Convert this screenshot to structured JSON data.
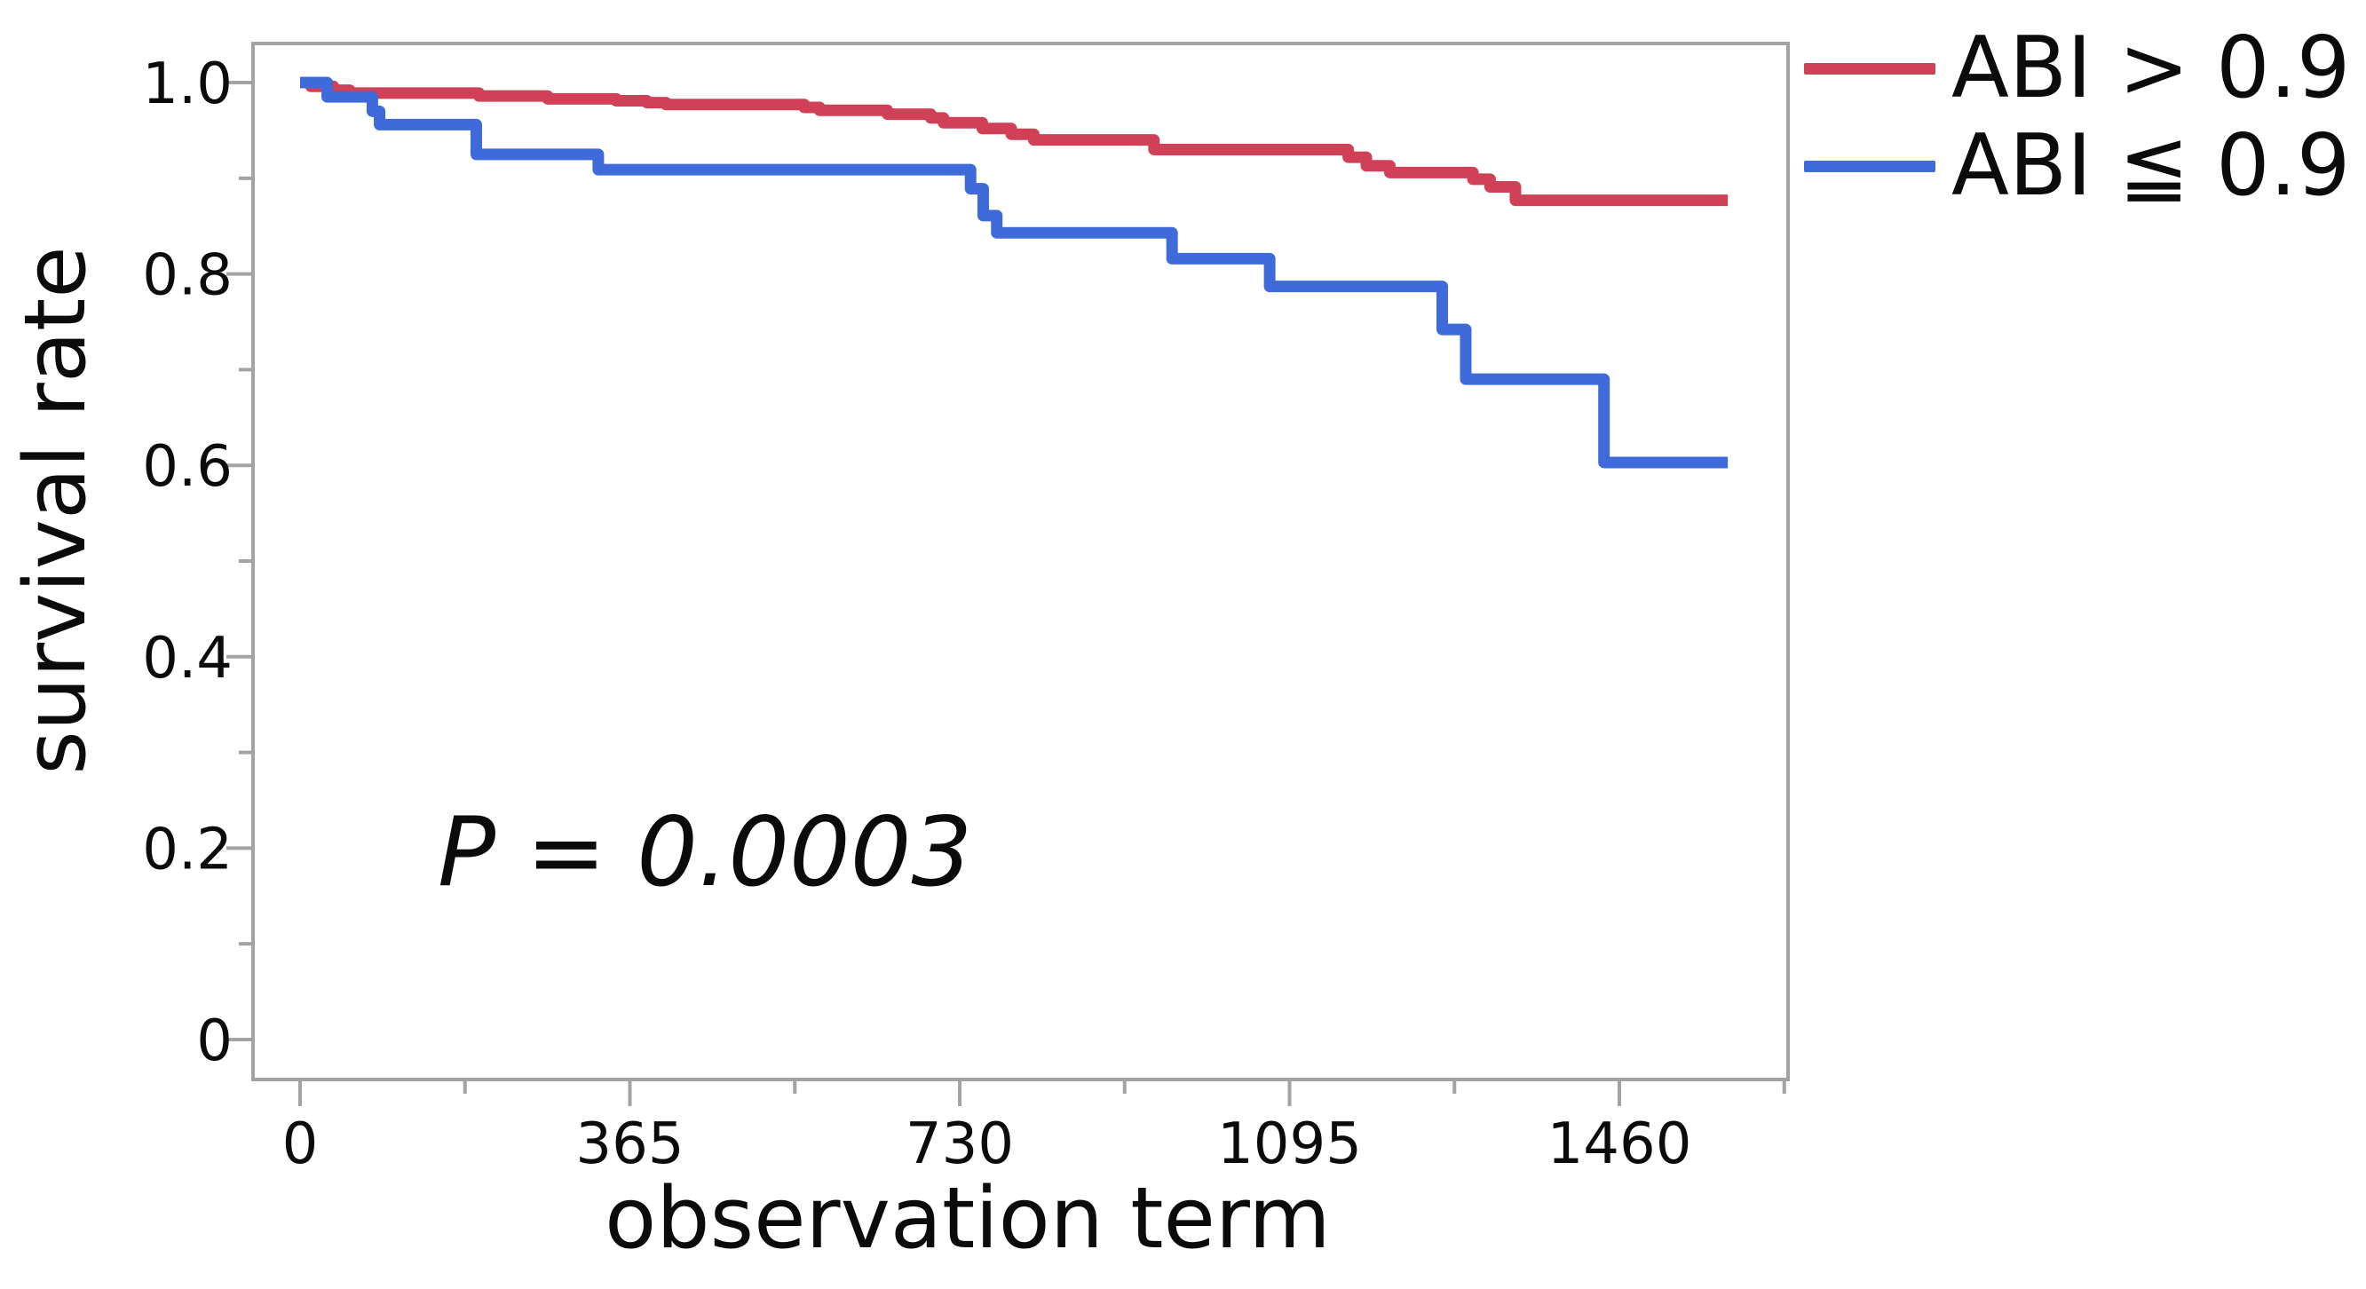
{
  "labels": {
    "y_axis": "survival rate",
    "x_axis": "observation term",
    "p_value": "P = 0.0003"
  },
  "legend": {
    "items": [
      {
        "label": "ABI > 0.9",
        "color": "#d04056"
      },
      {
        "label": "ABI ≦ 0.9",
        "color": "#3f6ad9"
      }
    ]
  },
  "colors": {
    "red_series": "#d04056",
    "blue_series": "#3f6ad9",
    "axis": "#a3a3a3",
    "text": "#0b0b0b",
    "background": "#ffffff"
  },
  "chart_data": {
    "type": "line",
    "variant": "kaplan_meier_step",
    "title": "",
    "xlabel": "observation term",
    "ylabel": "survival rate",
    "xlim": [
      0,
      1647
    ],
    "ylim": [
      0,
      1.04
    ],
    "grid": false,
    "legend_position": "top-right-outside",
    "annotation": {
      "text": "P = 0.0003",
      "x_day": 156,
      "y_value": 0.196
    },
    "x_ticks": {
      "major": [
        {
          "value": 0,
          "label": "0"
        },
        {
          "value": 365,
          "label": "365"
        },
        {
          "value": 730,
          "label": "730"
        },
        {
          "value": 1095,
          "label": "1095"
        },
        {
          "value": 1460,
          "label": "1460"
        }
      ],
      "minor": [
        182.5,
        547.5,
        912.5,
        1277.5,
        1642.5
      ]
    },
    "y_ticks": {
      "major": [
        {
          "value": 1.0,
          "label": "1.0"
        },
        {
          "value": 0.8,
          "label": "0.8"
        },
        {
          "value": 0.6,
          "label": "0.6"
        },
        {
          "value": 0.4,
          "label": "0.4"
        },
        {
          "value": 0.2,
          "label": "0.2"
        },
        {
          "value": 0.0,
          "label": "0"
        }
      ],
      "minor": [
        0.9,
        0.7,
        0.5,
        0.3,
        0.1
      ]
    },
    "series": [
      {
        "name": "ABI > 0.9",
        "color": "#d04056",
        "points": [
          [
            0,
            1.0
          ],
          [
            12,
            0.996
          ],
          [
            37,
            0.992
          ],
          [
            55,
            0.989
          ],
          [
            198,
            0.986
          ],
          [
            274,
            0.983
          ],
          [
            350,
            0.981
          ],
          [
            384,
            0.979
          ],
          [
            405,
            0.977
          ],
          [
            558,
            0.974
          ],
          [
            575,
            0.971
          ],
          [
            650,
            0.967
          ],
          [
            698,
            0.963
          ],
          [
            712,
            0.958
          ],
          [
            755,
            0.952
          ],
          [
            787,
            0.946
          ],
          [
            812,
            0.94
          ],
          [
            945,
            0.93
          ],
          [
            1160,
            0.922
          ],
          [
            1180,
            0.913
          ],
          [
            1206,
            0.906
          ],
          [
            1298,
            0.899
          ],
          [
            1317,
            0.891
          ],
          [
            1345,
            0.877
          ],
          [
            1580,
            0.877
          ]
        ]
      },
      {
        "name": "ABI ≦ 0.9",
        "color": "#3f6ad9",
        "points": [
          [
            0,
            1.0
          ],
          [
            30,
            0.985
          ],
          [
            80,
            0.97
          ],
          [
            88,
            0.956
          ],
          [
            195,
            0.925
          ],
          [
            330,
            0.909
          ],
          [
            742,
            0.889
          ],
          [
            756,
            0.861
          ],
          [
            771,
            0.843
          ],
          [
            965,
            0.816
          ],
          [
            1073,
            0.787
          ],
          [
            1264,
            0.742
          ],
          [
            1290,
            0.69
          ],
          [
            1443,
            0.603
          ],
          [
            1580,
            0.603
          ]
        ]
      }
    ]
  }
}
